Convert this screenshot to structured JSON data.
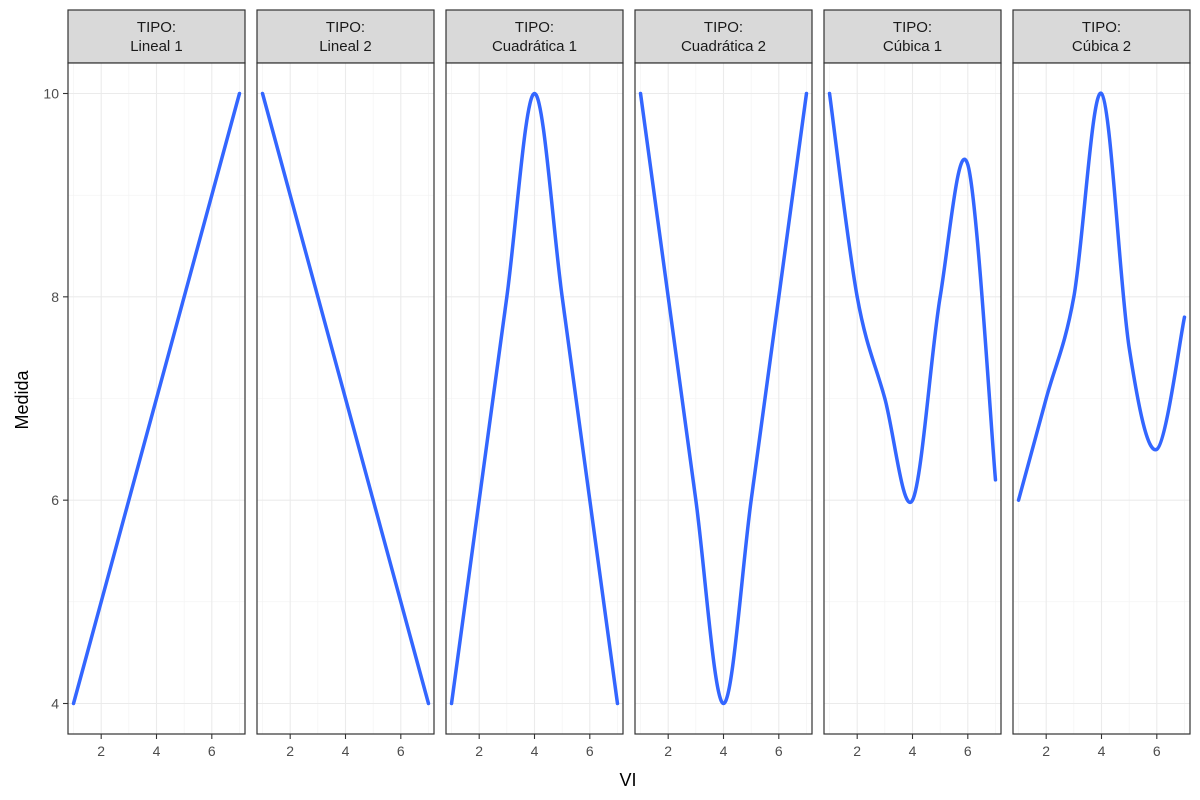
{
  "chart_data": {
    "type": "line",
    "xlabel": "VI",
    "ylabel": "Medida",
    "xlim": [
      0.8,
      7.2
    ],
    "ylim": [
      3.7,
      10.3
    ],
    "x_ticks": [
      2,
      4,
      6
    ],
    "y_ticks": [
      4,
      6,
      8,
      10
    ],
    "grid": true,
    "line_color": "#3366ff",
    "facet_prefix": "TIPO:",
    "facets": [
      {
        "label": "Lineal 1",
        "x": [
          1,
          2,
          3,
          4,
          5,
          6,
          7
        ],
        "y": [
          4,
          5,
          6,
          7,
          8,
          9,
          10
        ]
      },
      {
        "label": "Lineal 2",
        "x": [
          1,
          2,
          3,
          4,
          5,
          6,
          7
        ],
        "y": [
          10,
          9,
          8,
          7,
          6,
          5,
          4
        ]
      },
      {
        "label": "Cuadrática 1",
        "x": [
          1,
          2,
          3,
          4,
          5,
          6,
          7
        ],
        "y": [
          4,
          6,
          8,
          10,
          8,
          6,
          4
        ]
      },
      {
        "label": "Cuadrática 2",
        "x": [
          1,
          2,
          3,
          4,
          5,
          6,
          7
        ],
        "y": [
          10,
          8,
          6,
          4,
          6,
          8,
          10
        ]
      },
      {
        "label": "Cúbica 1",
        "x": [
          1,
          2,
          3,
          4,
          5,
          6,
          7
        ],
        "y": [
          10,
          8,
          7,
          6,
          8,
          9.3,
          6.2
        ]
      },
      {
        "label": "Cúbica 2",
        "x": [
          1,
          2,
          3,
          4,
          5,
          6,
          7
        ],
        "y": [
          6,
          7,
          8,
          10,
          7.5,
          6.5,
          7.8
        ]
      }
    ]
  }
}
